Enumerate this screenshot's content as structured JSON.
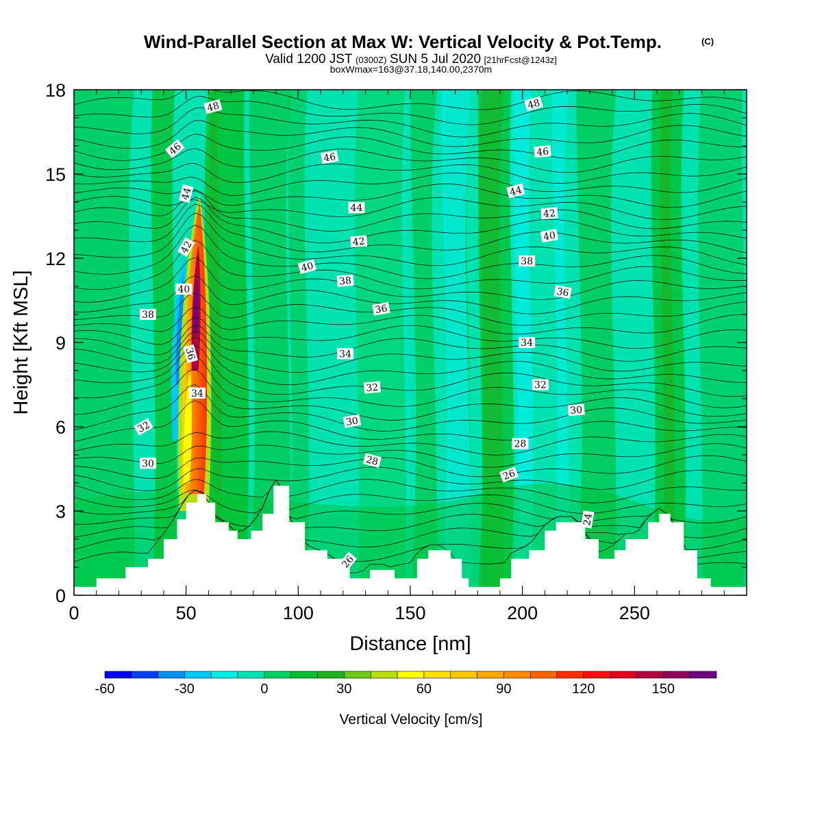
{
  "title": {
    "main": "Wind-Parallel Section at Max W: Vertical Velocity & Pot.Temp.",
    "copyright": "(C)",
    "valid_prefix": "Valid 1200 JST",
    "valid_utc": "(0300Z)",
    "valid_date": "SUN 5 Jul 2020",
    "forecast": "[21hrFcst@1243z]",
    "boxwmax": "boxWmax=163@37.18,140.00,2370m"
  },
  "colorbar": {
    "label": "Vertical Velocity [cm/s]",
    "tick_labels": [
      "-60",
      "-30",
      "0",
      "30",
      "60",
      "90",
      "120",
      "150"
    ],
    "tick_values": [
      -60,
      -30,
      0,
      30,
      60,
      90,
      120,
      150
    ],
    "bins": [
      -60,
      -50,
      -40,
      -30,
      -20,
      -10,
      0,
      10,
      20,
      30,
      40,
      50,
      60,
      70,
      80,
      90,
      100,
      110,
      120,
      130,
      140,
      150,
      160,
      170
    ],
    "colors": [
      "#0000f0",
      "#0040f0",
      "#0090f0",
      "#00c8f8",
      "#00eee8",
      "#00e2b0",
      "#00d060",
      "#00c030",
      "#20b020",
      "#70c818",
      "#b8e010",
      "#ffff00",
      "#ffe000",
      "#ffc800",
      "#ffa800",
      "#ff8c00",
      "#ff6600",
      "#ff3000",
      "#ff1010",
      "#e00020",
      "#b00040",
      "#900060",
      "#6a0080"
    ]
  },
  "chart_data": {
    "type": "heatmap",
    "title": "Wind-Parallel Section at Max W: Vertical Velocity & Pot.Temp.",
    "xlabel": "Distance [nm]",
    "ylabel": "Height [Kft MSL]",
    "xlim": [
      0,
      300
    ],
    "ylim": [
      0,
      18
    ],
    "x_ticks": [
      0,
      50,
      100,
      150,
      200,
      250
    ],
    "y_ticks": [
      0,
      3,
      6,
      9,
      12,
      15,
      18
    ],
    "field": "Vertical Velocity [cm/s]",
    "contour_field": "Potential Temperature",
    "terrain": {
      "x": [
        0,
        10,
        23,
        33,
        40,
        46,
        50,
        55,
        59,
        63,
        69,
        73,
        79,
        84,
        89,
        92,
        96,
        103,
        113,
        123,
        128,
        132,
        138,
        143,
        148,
        153,
        158,
        163,
        168,
        173,
        176,
        180,
        190,
        195,
        203,
        210,
        215,
        223,
        228,
        234,
        241,
        246,
        251,
        256,
        261,
        266,
        272,
        278,
        284,
        300
      ],
      "height": [
        0.3,
        0.6,
        1.0,
        1.3,
        2.0,
        2.7,
        3.3,
        3.6,
        3.3,
        2.6,
        2.3,
        2.0,
        2.3,
        2.9,
        3.9,
        3.9,
        2.6,
        1.6,
        1.3,
        0.6,
        0.6,
        0.9,
        0.9,
        0.6,
        0.6,
        1.3,
        1.6,
        1.6,
        1.3,
        0.6,
        0.3,
        0.3,
        0.6,
        1.3,
        1.6,
        2.3,
        2.6,
        2.6,
        2.0,
        1.3,
        1.6,
        2.0,
        2.0,
        2.6,
        2.9,
        2.6,
        1.6,
        0.6,
        0.3,
        0.3
      ]
    },
    "updraft_core": {
      "x_nm": 54,
      "height_kft": 7.5,
      "max_cm_s": 163
    },
    "contour_labels": [
      {
        "text": "48",
        "x": 62,
        "y": 17.4,
        "rot": -15
      },
      {
        "text": "48",
        "x": 205,
        "y": 17.5,
        "rot": -15
      },
      {
        "text": "46",
        "x": 45,
        "y": 15.9,
        "rot": -40
      },
      {
        "text": "46",
        "x": 114,
        "y": 15.6,
        "rot": -10
      },
      {
        "text": "46",
        "x": 209,
        "y": 15.8,
        "rot": -5
      },
      {
        "text": "44",
        "x": 50,
        "y": 14.3,
        "rot": -75
      },
      {
        "text": "44",
        "x": 126,
        "y": 13.8,
        "rot": 0
      },
      {
        "text": "44",
        "x": 197,
        "y": 14.4,
        "rot": -15
      },
      {
        "text": "42",
        "x": 50,
        "y": 12.4,
        "rot": -60
      },
      {
        "text": "42",
        "x": 127,
        "y": 12.6,
        "rot": -5
      },
      {
        "text": "42",
        "x": 212,
        "y": 13.6,
        "rot": -5
      },
      {
        "text": "40",
        "x": 49,
        "y": 10.9,
        "rot": 0
      },
      {
        "text": "40",
        "x": 104,
        "y": 11.7,
        "rot": -15
      },
      {
        "text": "40",
        "x": 212,
        "y": 12.8,
        "rot": -10
      },
      {
        "text": "38",
        "x": 33,
        "y": 10.0,
        "rot": 0
      },
      {
        "text": "38",
        "x": 121,
        "y": 11.2,
        "rot": -5
      },
      {
        "text": "38",
        "x": 202,
        "y": 11.9,
        "rot": 0
      },
      {
        "text": "36",
        "x": 52,
        "y": 8.6,
        "rot": 75
      },
      {
        "text": "36",
        "x": 137,
        "y": 10.2,
        "rot": -10
      },
      {
        "text": "36",
        "x": 218,
        "y": 10.8,
        "rot": 10
      },
      {
        "text": "34",
        "x": 55,
        "y": 7.2,
        "rot": 0
      },
      {
        "text": "34",
        "x": 121,
        "y": 8.6,
        "rot": 0
      },
      {
        "text": "34",
        "x": 202,
        "y": 9.0,
        "rot": 0
      },
      {
        "text": "32",
        "x": 31,
        "y": 6.0,
        "rot": -30
      },
      {
        "text": "32",
        "x": 133,
        "y": 7.4,
        "rot": -5
      },
      {
        "text": "32",
        "x": 208,
        "y": 7.5,
        "rot": 0
      },
      {
        "text": "30",
        "x": 33,
        "y": 4.7,
        "rot": 0
      },
      {
        "text": "30",
        "x": 124,
        "y": 6.2,
        "rot": -10
      },
      {
        "text": "30",
        "x": 224,
        "y": 6.6,
        "rot": -5
      },
      {
        "text": "28",
        "x": 133,
        "y": 4.8,
        "rot": 15
      },
      {
        "text": "28",
        "x": 199,
        "y": 5.4,
        "rot": 0
      },
      {
        "text": "26",
        "x": 122,
        "y": 1.2,
        "rot": -50
      },
      {
        "text": "26",
        "x": 194,
        "y": 4.3,
        "rot": -20
      },
      {
        "text": "24",
        "x": 229,
        "y": 2.7,
        "rot": -80
      }
    ]
  }
}
